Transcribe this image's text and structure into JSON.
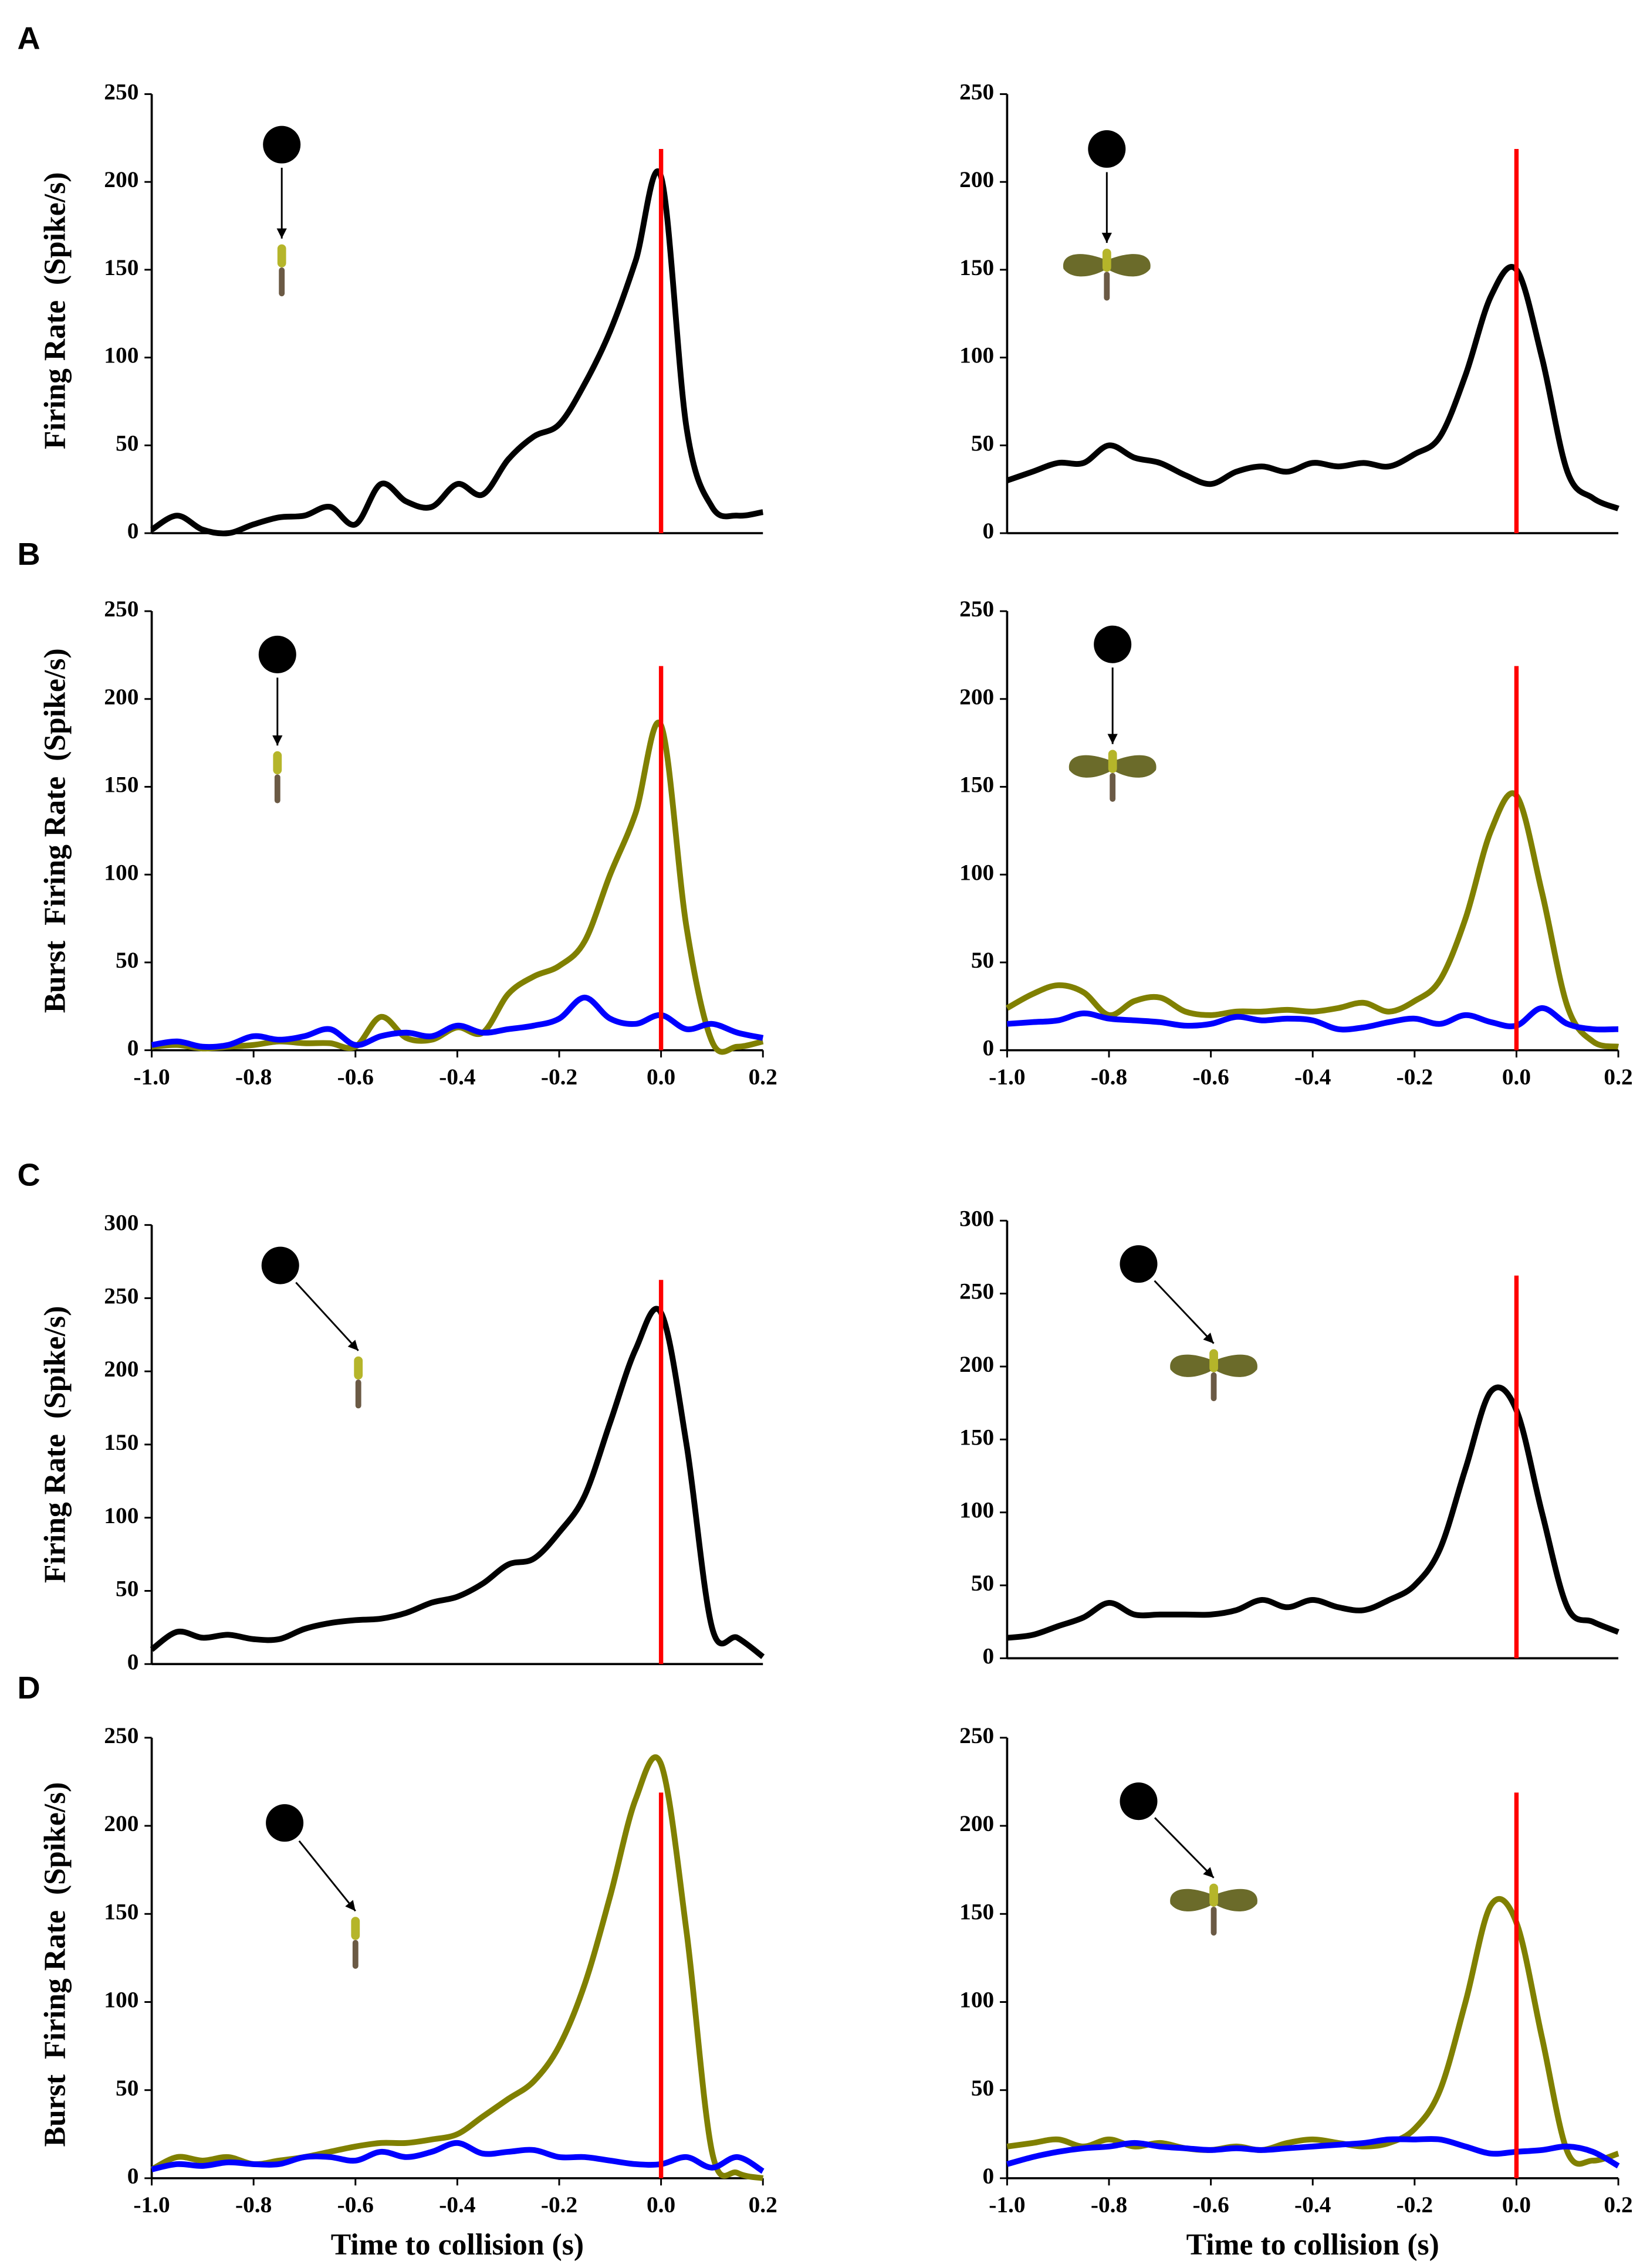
{
  "chart_data": [
    {
      "type": "line",
      "panel_label": "A",
      "ylabel": "Firing Rate  (Spike/s)",
      "x": [
        -1,
        -0.95,
        -0.9,
        -0.85,
        -0.8,
        -0.75,
        -0.7,
        -0.65,
        -0.6,
        -0.55,
        -0.5,
        -0.45,
        -0.4,
        -0.35,
        -0.3,
        -0.25,
        -0.2,
        -0.15,
        -0.1,
        -0.05,
        0,
        0.05,
        0.1,
        0.15,
        0.2
      ],
      "series": [
        {
          "color": "#000000",
          "values": [
            2,
            10,
            2,
            0,
            5,
            9,
            10,
            15,
            5,
            28,
            18,
            15,
            28,
            22,
            42,
            55,
            62,
            85,
            115,
            155,
            203,
            60,
            15,
            10,
            12
          ]
        }
      ],
      "xlim": [
        -1,
        0.2
      ],
      "ylim": [
        0,
        250
      ],
      "yticks": [
        0,
        50,
        100,
        150,
        200,
        250
      ],
      "vline": 0,
      "vline_color": "#ff0000"
    },
    {
      "type": "line",
      "x": [
        -1,
        -0.95,
        -0.9,
        -0.85,
        -0.8,
        -0.75,
        -0.7,
        -0.65,
        -0.6,
        -0.55,
        -0.5,
        -0.45,
        -0.4,
        -0.35,
        -0.3,
        -0.25,
        -0.2,
        -0.15,
        -0.1,
        -0.05,
        0,
        0.05,
        0.1,
        0.15,
        0.2
      ],
      "series": [
        {
          "color": "#000000",
          "values": [
            30,
            35,
            40,
            40,
            50,
            43,
            40,
            33,
            28,
            35,
            38,
            35,
            40,
            38,
            40,
            38,
            45,
            55,
            90,
            135,
            150,
            100,
            35,
            20,
            14
          ]
        }
      ],
      "xlim": [
        -1,
        0.2
      ],
      "ylim": [
        0,
        250
      ],
      "yticks": [
        0,
        50,
        100,
        150,
        200,
        250
      ],
      "vline": 0,
      "vline_color": "#ff0000"
    },
    {
      "type": "line",
      "panel_label": "B",
      "ylabel": "Burst  Firing Rate  (Spike/s)",
      "x": [
        -1,
        -0.95,
        -0.9,
        -0.85,
        -0.8,
        -0.75,
        -0.7,
        -0.65,
        -0.6,
        -0.55,
        -0.5,
        -0.45,
        -0.4,
        -0.35,
        -0.3,
        -0.25,
        -0.2,
        -0.15,
        -0.1,
        -0.05,
        0,
        0.05,
        0.1,
        0.15,
        0.2
      ],
      "series": [
        {
          "color": "#808000",
          "values": [
            2,
            3,
            1,
            2,
            3,
            5,
            4,
            4,
            2,
            19,
            7,
            6,
            13,
            10,
            32,
            42,
            48,
            62,
            100,
            135,
            185,
            70,
            5,
            2,
            5
          ]
        },
        {
          "color": "#0000ff",
          "values": [
            3,
            5,
            2,
            3,
            8,
            6,
            8,
            12,
            3,
            8,
            10,
            8,
            14,
            10,
            12,
            14,
            18,
            30,
            18,
            15,
            20,
            12,
            15,
            10,
            7
          ]
        }
      ],
      "xlim": [
        -1,
        0.2
      ],
      "ylim": [
        0,
        250
      ],
      "yticks": [
        0,
        50,
        100,
        150,
        200,
        250
      ],
      "xticks": [
        {
          "value": -1,
          "label": "-1.0"
        },
        {
          "value": -0.8,
          "label": "-0.8"
        },
        {
          "value": -0.6,
          "label": "-0.6"
        },
        {
          "value": -0.4,
          "label": "-0.4"
        },
        {
          "value": -0.2,
          "label": "-0.2"
        },
        {
          "value": 0,
          "label": "0.0"
        },
        0.2
      ],
      "vline": 0,
      "vline_color": "#ff0000"
    },
    {
      "type": "line",
      "x": [
        -1,
        -0.95,
        -0.9,
        -0.85,
        -0.8,
        -0.75,
        -0.7,
        -0.65,
        -0.6,
        -0.55,
        -0.5,
        -0.45,
        -0.4,
        -0.35,
        -0.3,
        -0.25,
        -0.2,
        -0.15,
        -0.1,
        -0.05,
        0,
        0.05,
        0.1,
        0.15,
        0.2
      ],
      "series": [
        {
          "color": "#808000",
          "values": [
            24,
            32,
            37,
            33,
            20,
            28,
            30,
            22,
            20,
            22,
            22,
            23,
            22,
            24,
            27,
            22,
            28,
            40,
            75,
            125,
            145,
            90,
            25,
            5,
            2
          ]
        },
        {
          "color": "#0000ff",
          "values": [
            15,
            16,
            17,
            21,
            18,
            17,
            16,
            14,
            15,
            19,
            17,
            18,
            17,
            12,
            13,
            16,
            18,
            15,
            20,
            16,
            14,
            24,
            15,
            12,
            12
          ]
        }
      ],
      "xlim": [
        -1,
        0.2
      ],
      "ylim": [
        0,
        250
      ],
      "yticks": [
        0,
        50,
        100,
        150,
        200,
        250
      ],
      "xticks": [
        {
          "value": -1,
          "label": "-1.0"
        },
        {
          "value": -0.8,
          "label": "-0.8"
        },
        {
          "value": -0.6,
          "label": "-0.6"
        },
        {
          "value": -0.4,
          "label": "-0.4"
        },
        {
          "value": -0.2,
          "label": "-0.2"
        },
        {
          "value": 0,
          "label": "0.0"
        },
        0.2
      ],
      "vline": 0,
      "vline_color": "#ff0000"
    },
    {
      "type": "line",
      "panel_label": "C",
      "ylabel": "Firing Rate  (Spike/s)",
      "x": [
        -1,
        -0.95,
        -0.9,
        -0.85,
        -0.8,
        -0.75,
        -0.7,
        -0.65,
        -0.6,
        -0.55,
        -0.5,
        -0.45,
        -0.4,
        -0.35,
        -0.3,
        -0.25,
        -0.2,
        -0.15,
        -0.1,
        -0.05,
        0,
        0.05,
        0.1,
        0.15,
        0.2
      ],
      "series": [
        {
          "color": "#000000",
          "values": [
            10,
            22,
            18,
            20,
            17,
            17,
            24,
            28,
            30,
            31,
            35,
            42,
            46,
            55,
            68,
            72,
            90,
            115,
            165,
            215,
            240,
            150,
            25,
            18,
            5
          ]
        }
      ],
      "xlim": [
        -1,
        0.2
      ],
      "ylim": [
        0,
        300
      ],
      "yticks": [
        0,
        50,
        100,
        150,
        200,
        250,
        300
      ],
      "vline": 0,
      "vline_color": "#ff0000"
    },
    {
      "type": "line",
      "x": [
        -1,
        -0.95,
        -0.9,
        -0.85,
        -0.8,
        -0.75,
        -0.7,
        -0.65,
        -0.6,
        -0.55,
        -0.5,
        -0.45,
        -0.4,
        -0.35,
        -0.3,
        -0.25,
        -0.2,
        -0.15,
        -0.1,
        -0.05,
        0,
        0.05,
        0.1,
        0.15,
        0.2
      ],
      "series": [
        {
          "color": "#000000",
          "values": [
            14,
            16,
            22,
            28,
            38,
            30,
            30,
            30,
            30,
            33,
            40,
            35,
            40,
            35,
            33,
            40,
            50,
            75,
            130,
            183,
            170,
            100,
            35,
            25,
            18
          ]
        }
      ],
      "xlim": [
        -1,
        0.2
      ],
      "ylim": [
        0,
        300
      ],
      "yticks": [
        0,
        50,
        100,
        150,
        200,
        250,
        300
      ],
      "vline": 0,
      "vline_color": "#ff0000"
    },
    {
      "type": "line",
      "panel_label": "D",
      "ylabel": "Burst  Firing Rate  (Spike/s)",
      "xlabel": "Time to collision (s)",
      "x": [
        -1,
        -0.95,
        -0.9,
        -0.85,
        -0.8,
        -0.75,
        -0.7,
        -0.65,
        -0.6,
        -0.55,
        -0.5,
        -0.45,
        -0.4,
        -0.35,
        -0.3,
        -0.25,
        -0.2,
        -0.15,
        -0.1,
        -0.05,
        0,
        0.05,
        0.1,
        0.15,
        0.2
      ],
      "series": [
        {
          "color": "#808000",
          "values": [
            5,
            12,
            10,
            12,
            8,
            10,
            12,
            15,
            18,
            20,
            20,
            22,
            25,
            35,
            45,
            55,
            75,
            110,
            160,
            215,
            235,
            140,
            15,
            3,
            0
          ]
        },
        {
          "color": "#0000ff",
          "values": [
            5,
            8,
            7,
            9,
            8,
            8,
            12,
            12,
            10,
            15,
            12,
            15,
            20,
            14,
            15,
            16,
            12,
            12,
            10,
            8,
            8,
            12,
            6,
            12,
            4
          ]
        }
      ],
      "xlim": [
        -1,
        0.2
      ],
      "ylim": [
        0,
        250
      ],
      "yticks": [
        0,
        50,
        100,
        150,
        200,
        250
      ],
      "xticks": [
        {
          "value": -1,
          "label": "-1.0"
        },
        {
          "value": -0.8,
          "label": "-0.8"
        },
        {
          "value": -0.6,
          "label": "-0.6"
        },
        {
          "value": -0.4,
          "label": "-0.4"
        },
        {
          "value": -0.2,
          "label": "-0.2"
        },
        {
          "value": 0,
          "label": "0.0"
        },
        0.2
      ],
      "vline": 0,
      "vline_color": "#ff0000"
    },
    {
      "type": "line",
      "xlabel": "Time to collision (s)",
      "x": [
        -1,
        -0.95,
        -0.9,
        -0.85,
        -0.8,
        -0.75,
        -0.7,
        -0.65,
        -0.6,
        -0.55,
        -0.5,
        -0.45,
        -0.4,
        -0.35,
        -0.3,
        -0.25,
        -0.2,
        -0.15,
        -0.1,
        -0.05,
        0,
        0.05,
        0.1,
        0.15,
        0.2
      ],
      "series": [
        {
          "color": "#808000",
          "values": [
            18,
            20,
            22,
            18,
            22,
            18,
            20,
            17,
            16,
            18,
            16,
            20,
            22,
            20,
            18,
            20,
            28,
            50,
            100,
            155,
            145,
            80,
            15,
            10,
            14
          ]
        },
        {
          "color": "#0000ff",
          "values": [
            8,
            12,
            15,
            17,
            18,
            20,
            18,
            17,
            16,
            17,
            16,
            17,
            18,
            19,
            20,
            22,
            22,
            22,
            18,
            14,
            15,
            16,
            18,
            15,
            7
          ]
        }
      ],
      "xlim": [
        -1,
        0.2
      ],
      "ylim": [
        0,
        250
      ],
      "yticks": [
        0,
        50,
        100,
        150,
        200,
        250
      ],
      "xticks": [
        {
          "value": -1,
          "label": "-1.0"
        },
        {
          "value": -0.8,
          "label": "-0.8"
        },
        {
          "value": -0.6,
          "label": "-0.6"
        },
        {
          "value": -0.4,
          "label": "-0.4"
        },
        {
          "value": -0.2,
          "label": "-0.2"
        },
        {
          "value": 0,
          "label": "0.0"
        },
        0.2
      ],
      "vline": 0,
      "vline_color": "#ff0000"
    }
  ]
}
